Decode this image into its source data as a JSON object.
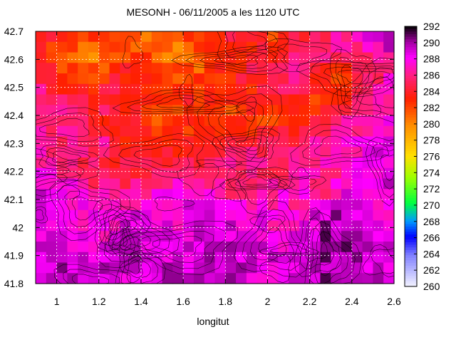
{
  "chart_data": {
    "type": "heatmap",
    "title": "MESONH - 06/11/2005 a les 1120 UTC",
    "xlabel": "longitut",
    "ylabel": "",
    "xlim": [
      0.9,
      2.6
    ],
    "ylim": [
      41.8,
      42.7
    ],
    "x_ticks": [
      "1",
      "1.2",
      "1.4",
      "1.6",
      "1.8",
      "2",
      "2.2",
      "2.4",
      "2.6"
    ],
    "y_ticks": [
      "41.8",
      "41.9",
      "42",
      "42.1",
      "42.2",
      "42.3",
      "42.4",
      "42.5",
      "42.6",
      "42.7"
    ],
    "grid": true,
    "colorbar": {
      "range": [
        260,
        292
      ],
      "ticks": [
        "260",
        "262",
        "264",
        "266",
        "268",
        "270",
        "272",
        "274",
        "276",
        "278",
        "280",
        "282",
        "284",
        "286",
        "288",
        "290",
        "292"
      ]
    },
    "overlay": "contour lines of terrain elevation",
    "field_rows": [
      [
        285,
        284,
        283,
        282,
        282,
        281,
        282,
        283,
        284,
        283,
        282,
        284,
        285,
        287,
        290,
        291
      ],
      [
        284,
        281,
        280,
        281,
        282,
        281,
        280,
        281,
        283,
        284,
        284,
        285,
        286,
        285,
        286,
        288
      ],
      [
        286,
        283,
        282,
        283,
        284,
        283,
        282,
        282,
        283,
        284,
        285,
        287,
        283,
        282,
        285,
        287
      ],
      [
        287,
        285,
        284,
        285,
        284,
        283,
        283,
        283,
        282,
        283,
        284,
        283,
        282,
        284,
        286,
        287
      ],
      [
        287,
        286,
        285,
        284,
        283,
        282,
        282,
        283,
        283,
        282,
        282,
        283,
        285,
        286,
        287,
        288
      ],
      [
        286,
        285,
        286,
        286,
        283,
        283,
        283,
        284,
        285,
        285,
        285,
        286,
        286,
        287,
        288,
        288
      ],
      [
        287,
        286,
        285,
        284,
        284,
        285,
        286,
        285,
        286,
        286,
        285,
        286,
        286,
        287,
        288,
        289
      ],
      [
        289,
        288,
        287,
        286,
        286,
        287,
        288,
        287,
        286,
        286,
        287,
        287,
        286,
        288,
        288,
        289
      ],
      [
        288,
        288,
        288,
        287,
        288,
        288,
        288,
        289,
        289,
        288,
        287,
        287,
        289,
        290,
        288,
        287
      ],
      [
        288,
        289,
        288,
        288,
        289,
        289,
        288,
        289,
        289,
        288,
        288,
        288,
        290,
        290,
        289,
        288
      ],
      [
        289,
        289,
        289,
        289,
        289,
        289,
        289,
        289,
        290,
        289,
        289,
        288,
        290,
        290,
        289,
        289
      ],
      [
        290,
        290,
        289,
        289,
        289,
        289,
        290,
        289,
        289,
        289,
        288,
        289,
        290,
        290,
        290,
        289
      ]
    ]
  },
  "colors": {
    "palette_stops": [
      [
        0.0,
        "#f2f2ff"
      ],
      [
        0.12,
        "#8080ff"
      ],
      [
        0.19,
        "#0000ff"
      ],
      [
        0.25,
        "#009aff"
      ],
      [
        0.32,
        "#00ff40"
      ],
      [
        0.42,
        "#a0ff00"
      ],
      [
        0.5,
        "#ffe000"
      ],
      [
        0.62,
        "#ff8c00"
      ],
      [
        0.72,
        "#ff2000"
      ],
      [
        0.81,
        "#ff2080"
      ],
      [
        0.88,
        "#ff00ff"
      ],
      [
        0.94,
        "#a000a0"
      ],
      [
        1.0,
        "#000000"
      ]
    ],
    "grid": "#ffffff",
    "contour": "#000000"
  }
}
